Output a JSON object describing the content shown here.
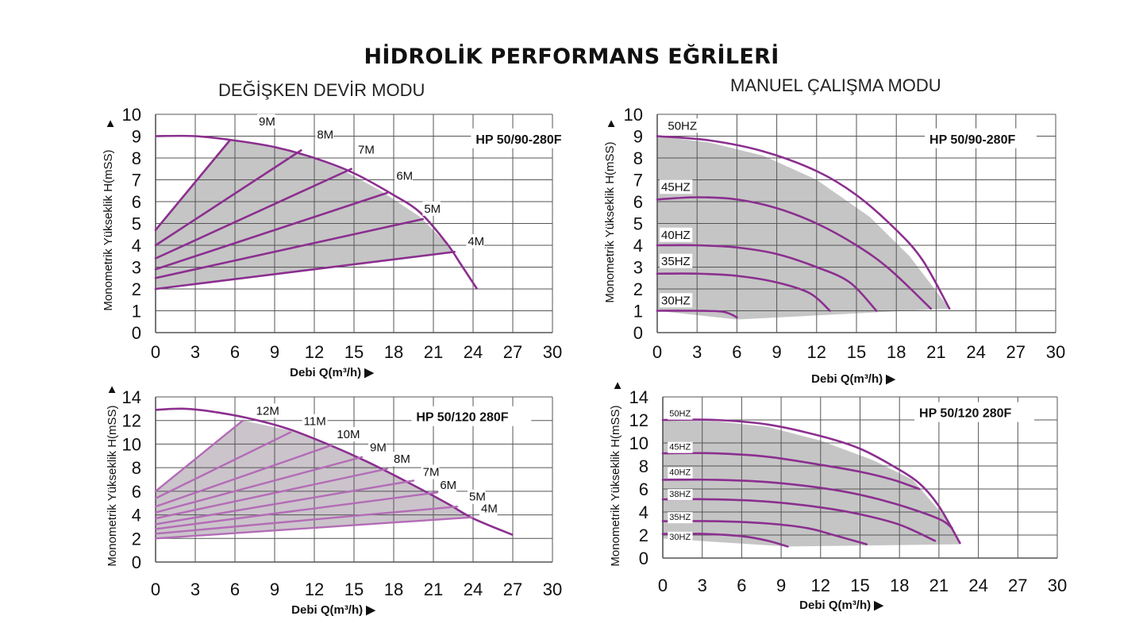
{
  "title": "HİDROLİK PERFORMANS EĞRİLERİ",
  "sections": {
    "left": "DEĞİŞKEN DEVİR MODU",
    "right": "MANUEL ÇALIŞMA MODU"
  },
  "colors": {
    "curve": "#8b2f8f",
    "curve_light": "#b36cb6",
    "area": "#c5c5c5",
    "area_light": "#cbc4cb",
    "grid": "#555555"
  },
  "chart_data": [
    {
      "type": "line",
      "title": "HP 50/90-280F",
      "xlabel": "Debi Q(m³/h) ▶",
      "ylabel": "Monometrik Yükseklik H(mSS)",
      "y_arrow": "▲",
      "xlim": [
        0,
        30
      ],
      "ylim": [
        0,
        10
      ],
      "xticks": [
        0,
        3,
        6,
        9,
        12,
        15,
        18,
        21,
        24,
        27,
        30
      ],
      "yticks": [
        0,
        1,
        2,
        3,
        4,
        5,
        6,
        7,
        8,
        9,
        10
      ],
      "envelope": [
        [
          0,
          9.0
        ],
        [
          3,
          9.0
        ],
        [
          6,
          8.8
        ],
        [
          9,
          8.5
        ],
        [
          12,
          8.0
        ],
        [
          15,
          7.3
        ],
        [
          18,
          6.3
        ],
        [
          20,
          5.5
        ],
        [
          22,
          4.1
        ],
        [
          23,
          3.2
        ],
        [
          24.3,
          2.0
        ]
      ],
      "shade": [
        [
          0,
          4.7
        ],
        [
          5.6,
          8.8
        ],
        [
          8,
          8.6
        ],
        [
          11,
          8.2
        ],
        [
          14,
          7.5
        ],
        [
          17,
          6.5
        ],
        [
          20,
          5.3
        ],
        [
          22.6,
          3.7
        ],
        [
          0,
          2.0
        ]
      ],
      "series": [
        {
          "name": "9M",
          "points": [
            [
              0,
              4.7
            ],
            [
              5.6,
              8.8
            ]
          ],
          "label_at": [
            7.8,
            9.5
          ]
        },
        {
          "name": "8M",
          "points": [
            [
              0,
              4.0
            ],
            [
              11,
              8.35
            ]
          ],
          "label_at": [
            12.2,
            8.9
          ]
        },
        {
          "name": "7M",
          "points": [
            [
              0,
              3.4
            ],
            [
              14.8,
              7.5
            ]
          ],
          "label_at": [
            15.3,
            8.2
          ]
        },
        {
          "name": "6M",
          "points": [
            [
              0,
              2.9
            ],
            [
              17.5,
              6.4
            ]
          ],
          "label_at": [
            18.2,
            7.0
          ]
        },
        {
          "name": "5M",
          "points": [
            [
              0,
              2.5
            ],
            [
              20.2,
              5.2
            ]
          ],
          "label_at": [
            20.3,
            5.5
          ]
        },
        {
          "name": "4M",
          "points": [
            [
              0,
              2.0
            ],
            [
              22.6,
              3.7
            ]
          ],
          "label_at": [
            23.6,
            4.0
          ]
        }
      ],
      "label_title_at": [
        24.2,
        8.7
      ]
    },
    {
      "type": "line",
      "title": "HP 50/90-280F",
      "xlabel": "Debi Q(m³/h) ▶",
      "ylabel": "Monometrik Yükseklik H(mSS)",
      "y_arrow": "▲",
      "xlim": [
        0,
        30
      ],
      "ylim": [
        0,
        10
      ],
      "xticks": [
        0,
        3,
        6,
        9,
        12,
        15,
        18,
        21,
        24,
        27,
        30
      ],
      "yticks": [
        0,
        1,
        2,
        3,
        4,
        5,
        6,
        7,
        8,
        9,
        10
      ],
      "shade": [
        [
          0,
          9.0
        ],
        [
          4,
          8.7
        ],
        [
          8,
          8.1
        ],
        [
          12,
          7.0
        ],
        [
          16,
          5.3
        ],
        [
          19,
          3.5
        ],
        [
          22,
          1.1
        ],
        [
          6,
          0.6
        ],
        [
          0,
          1.0
        ]
      ],
      "series": [
        {
          "name": "50HZ",
          "points": [
            [
              0,
              9.0
            ],
            [
              4,
              8.8
            ],
            [
              8,
              8.3
            ],
            [
              12,
              7.4
            ],
            [
              15,
              6.3
            ],
            [
              18,
              4.7
            ],
            [
              20,
              3.3
            ],
            [
              22,
              1.1
            ]
          ],
          "label_at": [
            0.8,
            9.3
          ]
        },
        {
          "name": "45HZ",
          "points": [
            [
              0,
              6.1
            ],
            [
              3,
              6.2
            ],
            [
              6,
              6.1
            ],
            [
              9,
              5.7
            ],
            [
              12,
              5.0
            ],
            [
              15,
              4.0
            ],
            [
              17.5,
              2.9
            ],
            [
              20.6,
              1.1
            ]
          ],
          "label_at": [
            0.3,
            6.5
          ]
        },
        {
          "name": "40HZ",
          "points": [
            [
              0,
              4.0
            ],
            [
              3,
              4.0
            ],
            [
              6,
              3.9
            ],
            [
              9,
              3.6
            ],
            [
              12,
              3.0
            ],
            [
              14.5,
              2.3
            ],
            [
              16.5,
              1.0
            ]
          ],
          "label_at": [
            0.3,
            4.3
          ]
        },
        {
          "name": "35HZ",
          "points": [
            [
              0,
              2.7
            ],
            [
              3,
              2.7
            ],
            [
              6,
              2.6
            ],
            [
              9,
              2.3
            ],
            [
              11.5,
              1.8
            ],
            [
              13,
              1.0
            ]
          ],
          "label_at": [
            0.3,
            3.1
          ]
        },
        {
          "name": "30HZ",
          "points": [
            [
              0,
              1.0
            ],
            [
              3,
              1.0
            ],
            [
              5,
              0.95
            ],
            [
              6,
              0.7
            ]
          ],
          "label_at": [
            0.3,
            1.3
          ]
        }
      ],
      "label_title_at": [
        20.5,
        8.7
      ]
    },
    {
      "type": "line",
      "title": "HP 50/120 280F",
      "xlabel": "Debi Q(m³/h) ▶",
      "ylabel": "Monometrik Yükseklik H(mSS)",
      "y_arrow": "▲",
      "xlim": [
        0,
        30
      ],
      "ylim": [
        0,
        14
      ],
      "xticks": [
        0,
        3,
        6,
        9,
        12,
        15,
        18,
        21,
        24,
        27,
        30
      ],
      "yticks": [
        0,
        2,
        4,
        6,
        8,
        10,
        12,
        14
      ],
      "envelope": [
        [
          0,
          12.9
        ],
        [
          2,
          13.0
        ],
        [
          4,
          12.8
        ],
        [
          7,
          12.2
        ],
        [
          10,
          11.3
        ],
        [
          13,
          10.0
        ],
        [
          16,
          8.5
        ],
        [
          19,
          6.8
        ],
        [
          22,
          5.0
        ],
        [
          24,
          3.7
        ],
        [
          27,
          2.3
        ]
      ],
      "shade": [
        [
          0,
          6.0
        ],
        [
          6.6,
          12.0
        ],
        [
          10,
          11.2
        ],
        [
          13,
          10.0
        ],
        [
          16,
          8.6
        ],
        [
          19,
          6.9
        ],
        [
          22,
          5.0
        ],
        [
          24,
          3.8
        ],
        [
          0,
          2.0
        ]
      ],
      "series": [
        {
          "name": "12M",
          "points": [
            [
              0,
              6.0
            ],
            [
              6.6,
              12.0
            ]
          ],
          "label_at": [
            7.6,
            12.5
          ]
        },
        {
          "name": "11M",
          "points": [
            [
              0,
              5.4
            ],
            [
              10.2,
              11.0
            ]
          ],
          "label_at": [
            11.2,
            11.6
          ]
        },
        {
          "name": "10M",
          "points": [
            [
              0,
              4.7
            ],
            [
              13.3,
              9.9
            ]
          ],
          "label_at": [
            13.7,
            10.5
          ]
        },
        {
          "name": "9M",
          "points": [
            [
              0,
              4.2
            ],
            [
              15.6,
              8.9
            ]
          ],
          "label_at": [
            16.2,
            9.4
          ]
        },
        {
          "name": "8M",
          "points": [
            [
              0,
              3.7
            ],
            [
              17.5,
              7.9
            ]
          ],
          "label_at": [
            18.0,
            8.4
          ]
        },
        {
          "name": "7M",
          "points": [
            [
              0,
              3.2
            ],
            [
              19.5,
              6.9
            ]
          ],
          "label_at": [
            20.2,
            7.3
          ]
        },
        {
          "name": "6M",
          "points": [
            [
              0,
              2.8
            ],
            [
              21.3,
              5.9
            ]
          ],
          "label_at": [
            21.5,
            6.2
          ]
        },
        {
          "name": "5M",
          "points": [
            [
              0,
              2.4
            ],
            [
              22.8,
              4.7
            ]
          ],
          "label_at": [
            23.7,
            5.2
          ]
        },
        {
          "name": "4M",
          "points": [
            [
              0,
              2.0
            ],
            [
              24,
              3.8
            ]
          ],
          "label_at": [
            24.6,
            4.2
          ]
        }
      ],
      "label_title_at": [
        19.7,
        12.0
      ]
    },
    {
      "type": "line",
      "title": "HP 50/120 280F",
      "xlabel": "Debi Q(m³/h) ▶",
      "ylabel": "Monometrik Yükseklik H(mSS)",
      "y_arrow": "▲",
      "xlim": [
        0,
        30
      ],
      "ylim": [
        0,
        14
      ],
      "xticks": [
        0,
        3,
        6,
        9,
        12,
        15,
        18,
        21,
        24,
        27,
        30
      ],
      "yticks": [
        0,
        2,
        4,
        6,
        8,
        10,
        12,
        14
      ],
      "shade": [
        [
          0,
          12.0
        ],
        [
          4,
          11.9
        ],
        [
          8,
          11.4
        ],
        [
          12,
          10.2
        ],
        [
          16,
          8.5
        ],
        [
          19,
          6.8
        ],
        [
          21.5,
          3.5
        ],
        [
          22.6,
          1.2
        ],
        [
          9.5,
          1.0
        ],
        [
          0,
          1.7
        ]
      ],
      "series": [
        {
          "name": "50HZ",
          "points": [
            [
              0,
              12.0
            ],
            [
              4,
              12.0
            ],
            [
              8,
              11.6
            ],
            [
              12,
              10.6
            ],
            [
              15,
              9.5
            ],
            [
              17.5,
              8.0
            ],
            [
              19.5,
              6.5
            ],
            [
              21,
              4.5
            ],
            [
              22.6,
              1.3
            ]
          ],
          "label_at": [
            0.5,
            12.3
          ]
        },
        {
          "name": "45HZ",
          "points": [
            [
              0,
              9.1
            ],
            [
              4,
              9.1
            ],
            [
              8,
              8.8
            ],
            [
              12,
              8.1
            ],
            [
              15,
              7.5
            ],
            [
              17.5,
              6.8
            ],
            [
              19.5,
              6.0
            ]
          ],
          "label_at": [
            0.5,
            9.4
          ]
        },
        {
          "name": "40HZ",
          "points": [
            [
              0,
              6.8
            ],
            [
              4,
              6.8
            ],
            [
              8,
              6.6
            ],
            [
              12,
              6.1
            ],
            [
              15,
              5.5
            ],
            [
              18,
              4.6
            ],
            [
              21,
              3.4
            ],
            [
              22,
              2.6
            ]
          ],
          "label_at": [
            0.5,
            7.2
          ]
        },
        {
          "name": "38HZ",
          "points": [
            [
              0,
              5.1
            ],
            [
              4,
              5.1
            ],
            [
              8,
              4.9
            ],
            [
              12,
              4.4
            ],
            [
              15,
              3.8
            ],
            [
              18,
              2.9
            ],
            [
              20.7,
              1.5
            ]
          ],
          "label_at": [
            0.5,
            5.3
          ]
        },
        {
          "name": "35HZ",
          "points": [
            [
              0,
              3.2
            ],
            [
              4,
              3.2
            ],
            [
              8,
              3.0
            ],
            [
              11,
              2.6
            ],
            [
              13,
              2.0
            ],
            [
              15.5,
              1.2
            ]
          ],
          "label_at": [
            0.5,
            3.3
          ]
        },
        {
          "name": "30HZ",
          "points": [
            [
              0,
              2.1
            ],
            [
              3,
              2.1
            ],
            [
              6,
              1.9
            ],
            [
              8,
              1.5
            ],
            [
              9.5,
              1.0
            ]
          ],
          "label_at": [
            0.5,
            1.6
          ]
        }
      ],
      "label_title_at": [
        19.5,
        12.3
      ]
    }
  ]
}
